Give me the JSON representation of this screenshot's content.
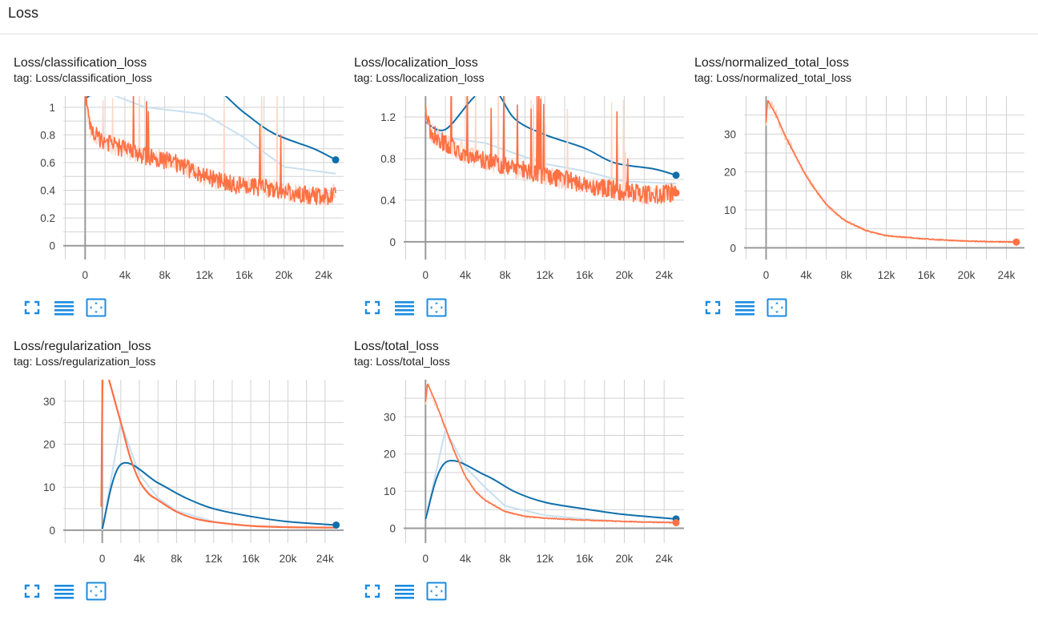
{
  "section": {
    "title": "Loss"
  },
  "colors": {
    "orange": "#ff7043",
    "orange_faint": "#ffd5c6",
    "blue": "#0f6fab",
    "blue_faint": "#c9dff0",
    "grid": "#d2d2d2",
    "axis": "#999999",
    "tool": "#1a8ce0"
  },
  "tools": [
    {
      "icon": "fullscreen-icon"
    },
    {
      "icon": "log-scale-icon"
    },
    {
      "icon": "fit-domain-icon"
    }
  ],
  "cards": [
    {
      "title": "Loss/classification_loss",
      "tag": "tag: Loss/classification_loss",
      "chart_data": {
        "type": "line",
        "title": "Loss/classification_loss",
        "xlim": [
          -2200,
          26000
        ],
        "ylim": [
          -0.1,
          1.08
        ],
        "x_ticks": [
          {
            "v": 0,
            "label": "0"
          },
          {
            "v": 4000,
            "label": "4k"
          },
          {
            "v": 8000,
            "label": "8k"
          },
          {
            "v": 12000,
            "label": "12k"
          },
          {
            "v": 16000,
            "label": "16k"
          },
          {
            "v": 20000,
            "label": "20k"
          },
          {
            "v": 24000,
            "label": "24k"
          }
        ],
        "y_ticks": [
          {
            "v": 0,
            "label": "0"
          },
          {
            "v": 0.2,
            "label": "0.2"
          },
          {
            "v": 0.4,
            "label": "0.4"
          },
          {
            "v": 0.6,
            "label": "0.6"
          },
          {
            "v": 0.8,
            "label": "0.8"
          },
          {
            "v": 1,
            "label": "1"
          }
        ],
        "series": [
          {
            "role": "blue_raw",
            "smooth": false,
            "points": [
              [
                0,
                1.07
              ],
              [
                2000,
                1.11
              ],
              [
                6000,
                1.0
              ],
              [
                12000,
                0.95
              ],
              [
                16000,
                0.78
              ],
              [
                20000,
                0.57
              ],
              [
                25200,
                0.52
              ]
            ]
          },
          {
            "role": "blue",
            "smooth": true,
            "points": [
              [
                0,
                1.06
              ],
              [
                2000,
                1.15
              ],
              [
                6000,
                1.2
              ],
              [
                12000,
                1.18
              ],
              [
                16000,
                0.96
              ],
              [
                19000,
                0.81
              ],
              [
                23000,
                0.7
              ],
              [
                25200,
                0.62
              ]
            ]
          },
          {
            "role": "orange",
            "noisy": true,
            "seed": 11,
            "noise": 0.07,
            "spike": 0.45,
            "spikeprob": 0.025,
            "points": [
              [
                0,
                1.1
              ],
              [
                500,
                0.85
              ],
              [
                1500,
                0.76
              ],
              [
                3000,
                0.72
              ],
              [
                6000,
                0.65
              ],
              [
                9000,
                0.6
              ],
              [
                12000,
                0.5
              ],
              [
                15000,
                0.44
              ],
              [
                18000,
                0.42
              ],
              [
                21000,
                0.38
              ],
              [
                24000,
                0.35
              ],
              [
                25200,
                0.38
              ]
            ]
          }
        ],
        "end_markers": [
          {
            "role": "blue",
            "x": 25200,
            "y": 0.62
          }
        ]
      }
    },
    {
      "title": "Loss/localization_loss",
      "tag": "tag: Loss/localization_loss",
      "chart_data": {
        "type": "line",
        "title": "Loss/localization_loss",
        "xlim": [
          -2200,
          26000
        ],
        "ylim": [
          -0.17,
          1.4
        ],
        "x_ticks": [
          {
            "v": 0,
            "label": "0"
          },
          {
            "v": 4000,
            "label": "4k"
          },
          {
            "v": 8000,
            "label": "8k"
          },
          {
            "v": 12000,
            "label": "12k"
          },
          {
            "v": 16000,
            "label": "16k"
          },
          {
            "v": 20000,
            "label": "20k"
          },
          {
            "v": 24000,
            "label": "24k"
          }
        ],
        "y_ticks": [
          {
            "v": 0,
            "label": "0"
          },
          {
            "v": 0.4,
            "label": "0.4"
          },
          {
            "v": 0.8,
            "label": "0.8"
          },
          {
            "v": 1.2,
            "label": "1.2"
          }
        ],
        "series": [
          {
            "role": "blue_raw",
            "smooth": false,
            "points": [
              [
                0,
                1.15
              ],
              [
                2000,
                1.0
              ],
              [
                6000,
                0.95
              ],
              [
                9000,
                0.85
              ],
              [
                12000,
                0.75
              ],
              [
                16000,
                0.68
              ],
              [
                20000,
                0.58
              ],
              [
                25200,
                0.56
              ]
            ]
          },
          {
            "role": "blue",
            "smooth": true,
            "points": [
              [
                0,
                1.15
              ],
              [
                2000,
                1.08
              ],
              [
                5000,
                1.4
              ],
              [
                7000,
                1.45
              ],
              [
                9000,
                1.18
              ],
              [
                12000,
                1.03
              ],
              [
                16000,
                0.9
              ],
              [
                19000,
                0.76
              ],
              [
                23000,
                0.7
              ],
              [
                25200,
                0.64
              ]
            ]
          },
          {
            "role": "orange",
            "noisy": true,
            "seed": 23,
            "noise": 0.1,
            "spike": 0.6,
            "spikeprob": 0.03,
            "points": [
              [
                0,
                1.3
              ],
              [
                500,
                1.05
              ],
              [
                2000,
                0.95
              ],
              [
                4000,
                0.85
              ],
              [
                7000,
                0.75
              ],
              [
                10000,
                0.68
              ],
              [
                13000,
                0.62
              ],
              [
                16000,
                0.55
              ],
              [
                19000,
                0.5
              ],
              [
                22000,
                0.45
              ],
              [
                25200,
                0.47
              ]
            ]
          }
        ],
        "end_markers": [
          {
            "role": "blue",
            "x": 25200,
            "y": 0.64
          },
          {
            "role": "orange",
            "x": 25200,
            "y": 0.47
          }
        ]
      }
    },
    {
      "title": "Loss/normalized_total_loss",
      "tag": "tag: Loss/normalized_total_loss",
      "chart_data": {
        "type": "line",
        "title": "Loss/normalized_total_loss",
        "xlim": [
          -2200,
          25800
        ],
        "ylim": [
          -3.1,
          40
        ],
        "x_ticks": [
          {
            "v": 0,
            "label": "0"
          },
          {
            "v": 4000,
            "label": "4k"
          },
          {
            "v": 8000,
            "label": "8k"
          },
          {
            "v": 12000,
            "label": "12k"
          },
          {
            "v": 16000,
            "label": "16k"
          },
          {
            "v": 20000,
            "label": "20k"
          },
          {
            "v": 24000,
            "label": "24k"
          }
        ],
        "y_ticks": [
          {
            "v": 0,
            "label": "0"
          },
          {
            "v": 10,
            "label": "10"
          },
          {
            "v": 20,
            "label": "20"
          },
          {
            "v": 30,
            "label": "30"
          }
        ],
        "series": [
          {
            "role": "orange",
            "noisy": true,
            "seed": 5,
            "noise": 0.35,
            "spike": 0,
            "spikeprob": 0,
            "points": [
              [
                0,
                33
              ],
              [
                150,
                39
              ],
              [
                1000,
                35
              ],
              [
                2000,
                29
              ],
              [
                3000,
                24
              ],
              [
                4000,
                19
              ],
              [
                5000,
                15
              ],
              [
                6000,
                11.5
              ],
              [
                7000,
                9
              ],
              [
                8000,
                7
              ],
              [
                10000,
                4.5
              ],
              [
                12000,
                3.2
              ],
              [
                15000,
                2.5
              ],
              [
                18000,
                2
              ],
              [
                21000,
                1.7
              ],
              [
                25000,
                1.5
              ]
            ]
          }
        ],
        "end_markers": [
          {
            "role": "orange",
            "x": 25000,
            "y": 1.5
          }
        ]
      }
    },
    {
      "title": "Loss/regularization_loss",
      "tag": "tag: Loss/regularization_loss",
      "chart_data": {
        "type": "line",
        "title": "Loss/regularization_loss",
        "xlim": [
          -4200,
          26000
        ],
        "ylim": [
          -3,
          35
        ],
        "x_ticks": [
          {
            "v": 0,
            "label": "0"
          },
          {
            "v": 4000,
            "label": "4k"
          },
          {
            "v": 8000,
            "label": "8k"
          },
          {
            "v": 12000,
            "label": "12k"
          },
          {
            "v": 16000,
            "label": "16k"
          },
          {
            "v": 20000,
            "label": "20k"
          },
          {
            "v": 24000,
            "label": "24k"
          }
        ],
        "y_ticks": [
          {
            "v": 0,
            "label": "0"
          },
          {
            "v": 10,
            "label": "10"
          },
          {
            "v": 20,
            "label": "20"
          },
          {
            "v": 30,
            "label": "30"
          }
        ],
        "series": [
          {
            "role": "blue_raw",
            "smooth": false,
            "points": [
              [
                0,
                0
              ],
              [
                2000,
                25
              ],
              [
                4000,
                13
              ],
              [
                6000,
                7.5
              ],
              [
                8000,
                4.5
              ],
              [
                12000,
                2
              ],
              [
                16000,
                1
              ],
              [
                20000,
                0.7
              ],
              [
                25200,
                0.6
              ]
            ]
          },
          {
            "role": "blue",
            "smooth": true,
            "points": [
              [
                0,
                0.3
              ],
              [
                2000,
                15.3
              ],
              [
                6000,
                11
              ],
              [
                9000,
                7.5
              ],
              [
                12000,
                5
              ],
              [
                16000,
                3.2
              ],
              [
                20000,
                2
              ],
              [
                25200,
                1.2
              ]
            ]
          },
          {
            "role": "orange",
            "smooth": true,
            "points": [
              [
                -100,
                5.5
              ],
              [
                100,
                40
              ],
              [
                600,
                36
              ],
              [
                2000,
                25
              ],
              [
                3000,
                17
              ],
              [
                4000,
                11.5
              ],
              [
                5000,
                8.5
              ],
              [
                6000,
                7
              ],
              [
                8000,
                4.3
              ],
              [
                10000,
                2.7
              ],
              [
                12000,
                1.9
              ],
              [
                16000,
                1
              ],
              [
                20000,
                0.7
              ],
              [
                25200,
                0.6
              ]
            ]
          }
        ],
        "end_markers": [
          {
            "role": "blue",
            "x": 25200,
            "y": 1.2
          }
        ]
      }
    },
    {
      "title": "Loss/total_loss",
      "tag": "tag: Loss/total_loss",
      "chart_data": {
        "type": "line",
        "title": "Loss/total_loss",
        "xlim": [
          -2200,
          26000
        ],
        "ylim": [
          -4,
          40
        ],
        "x_ticks": [
          {
            "v": 0,
            "label": "0"
          },
          {
            "v": 4000,
            "label": "4k"
          },
          {
            "v": 8000,
            "label": "8k"
          },
          {
            "v": 12000,
            "label": "12k"
          },
          {
            "v": 16000,
            "label": "16k"
          },
          {
            "v": 20000,
            "label": "20k"
          },
          {
            "v": 24000,
            "label": "24k"
          }
        ],
        "y_ticks": [
          {
            "v": 0,
            "label": "0"
          },
          {
            "v": 10,
            "label": "10"
          },
          {
            "v": 20,
            "label": "20"
          },
          {
            "v": 30,
            "label": "30"
          }
        ],
        "series": [
          {
            "role": "blue_raw",
            "smooth": false,
            "points": [
              [
                0,
                2.5
              ],
              [
                2000,
                26.5
              ],
              [
                4000,
                16.5
              ],
              [
                6000,
                11
              ],
              [
                8000,
                6
              ],
              [
                12000,
                3.5
              ],
              [
                16000,
                2.5
              ],
              [
                20000,
                1.8
              ],
              [
                25200,
                1.7
              ]
            ]
          },
          {
            "role": "blue",
            "smooth": true,
            "points": [
              [
                0,
                2.5
              ],
              [
                2000,
                17.7
              ],
              [
                6000,
                14.3
              ],
              [
                9000,
                9.8
              ],
              [
                12000,
                7
              ],
              [
                16000,
                5.2
              ],
              [
                20000,
                3.7
              ],
              [
                25200,
                2.5
              ]
            ]
          },
          {
            "role": "orange",
            "noisy": true,
            "seed": 37,
            "noise": 0.3,
            "spike": 0,
            "spikeprob": 0,
            "points": [
              [
                0,
                34
              ],
              [
                200,
                39
              ],
              [
                1000,
                34
              ],
              [
                2000,
                27
              ],
              [
                3000,
                20
              ],
              [
                4000,
                14
              ],
              [
                5000,
                10
              ],
              [
                6000,
                7.5
              ],
              [
                8000,
                4.5
              ],
              [
                10000,
                3.2
              ],
              [
                12000,
                2.7
              ],
              [
                16000,
                2.2
              ],
              [
                20000,
                1.8
              ],
              [
                25200,
                1.5
              ]
            ]
          }
        ],
        "end_markers": [
          {
            "role": "blue",
            "x": 25200,
            "y": 2.5
          },
          {
            "role": "orange",
            "x": 25200,
            "y": 1.5
          }
        ]
      }
    }
  ]
}
